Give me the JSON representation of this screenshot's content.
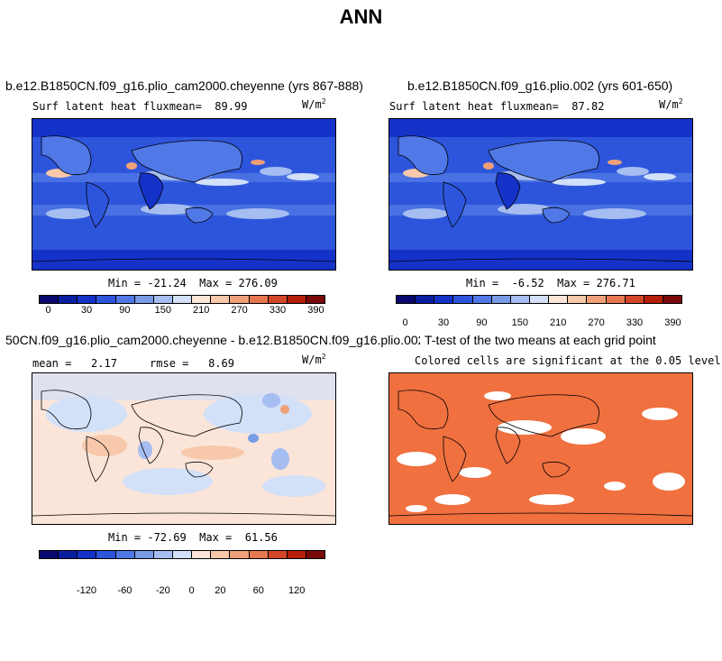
{
  "title": "ANN",
  "panels": [
    {
      "title": "b.e12.B1850CN.f09_g16.plio_cam2000.cheyenne (yrs 867-888)",
      "subtitle": "Surf latent heat fluxmean=  89.99",
      "units": "W/m",
      "units_exp": "2",
      "minmax": "Min = -21.24  Max = 276.09",
      "colorbar_ticks": [
        "0",
        "30",
        "90",
        "150",
        "210",
        "270",
        "330",
        "390"
      ]
    },
    {
      "title": "b.e12.B1850CN.f09_g16.plio.002 (yrs 601-650)",
      "subtitle": "Surf latent heat fluxmean=  87.82",
      "units": "W/m",
      "units_exp": "2",
      "minmax": "Min =  -6.52  Max = 276.71",
      "colorbar_ticks": [
        "0",
        "30",
        "90",
        "150",
        "210",
        "270",
        "330",
        "390"
      ]
    },
    {
      "title": "50CN.f09_g16.plio_cam2000.cheyenne - b.e12.B1850CN.f09_g16.plio.002",
      "subtitle": "mean =   2.17     rmse =   8.69",
      "units": "W/m",
      "units_exp": "2",
      "minmax": "Min = -72.69  Max =  61.56",
      "colorbar_ticks": [
        "-120",
        "-60",
        "-20",
        "0",
        "20",
        "60",
        "120"
      ]
    },
    {
      "title": "T-test of the two means at each grid point",
      "subtitle": "Colored cells are significant at the 0.05 level"
    }
  ],
  "colors": {
    "abs_scale": [
      "#08086e",
      "#0a1ea0",
      "#1432c8",
      "#2d55dc",
      "#5078e6",
      "#789be8",
      "#a5bdf0",
      "#d2e0f8",
      "#fbe5d8",
      "#f8c8aa",
      "#f0a078",
      "#e67850",
      "#d24628",
      "#b41e0a",
      "#7a0a0a"
    ],
    "diff_scale": [
      "#08086e",
      "#0a1ea0",
      "#1432c8",
      "#2d55dc",
      "#5078e6",
      "#789be8",
      "#a5bdf0",
      "#d2e0f8",
      "#fbe5d8",
      "#f8c8aa",
      "#f0a078",
      "#e67850",
      "#d24628",
      "#b41e0a",
      "#7a0a0a"
    ],
    "ttest_fill": "#f07040"
  }
}
